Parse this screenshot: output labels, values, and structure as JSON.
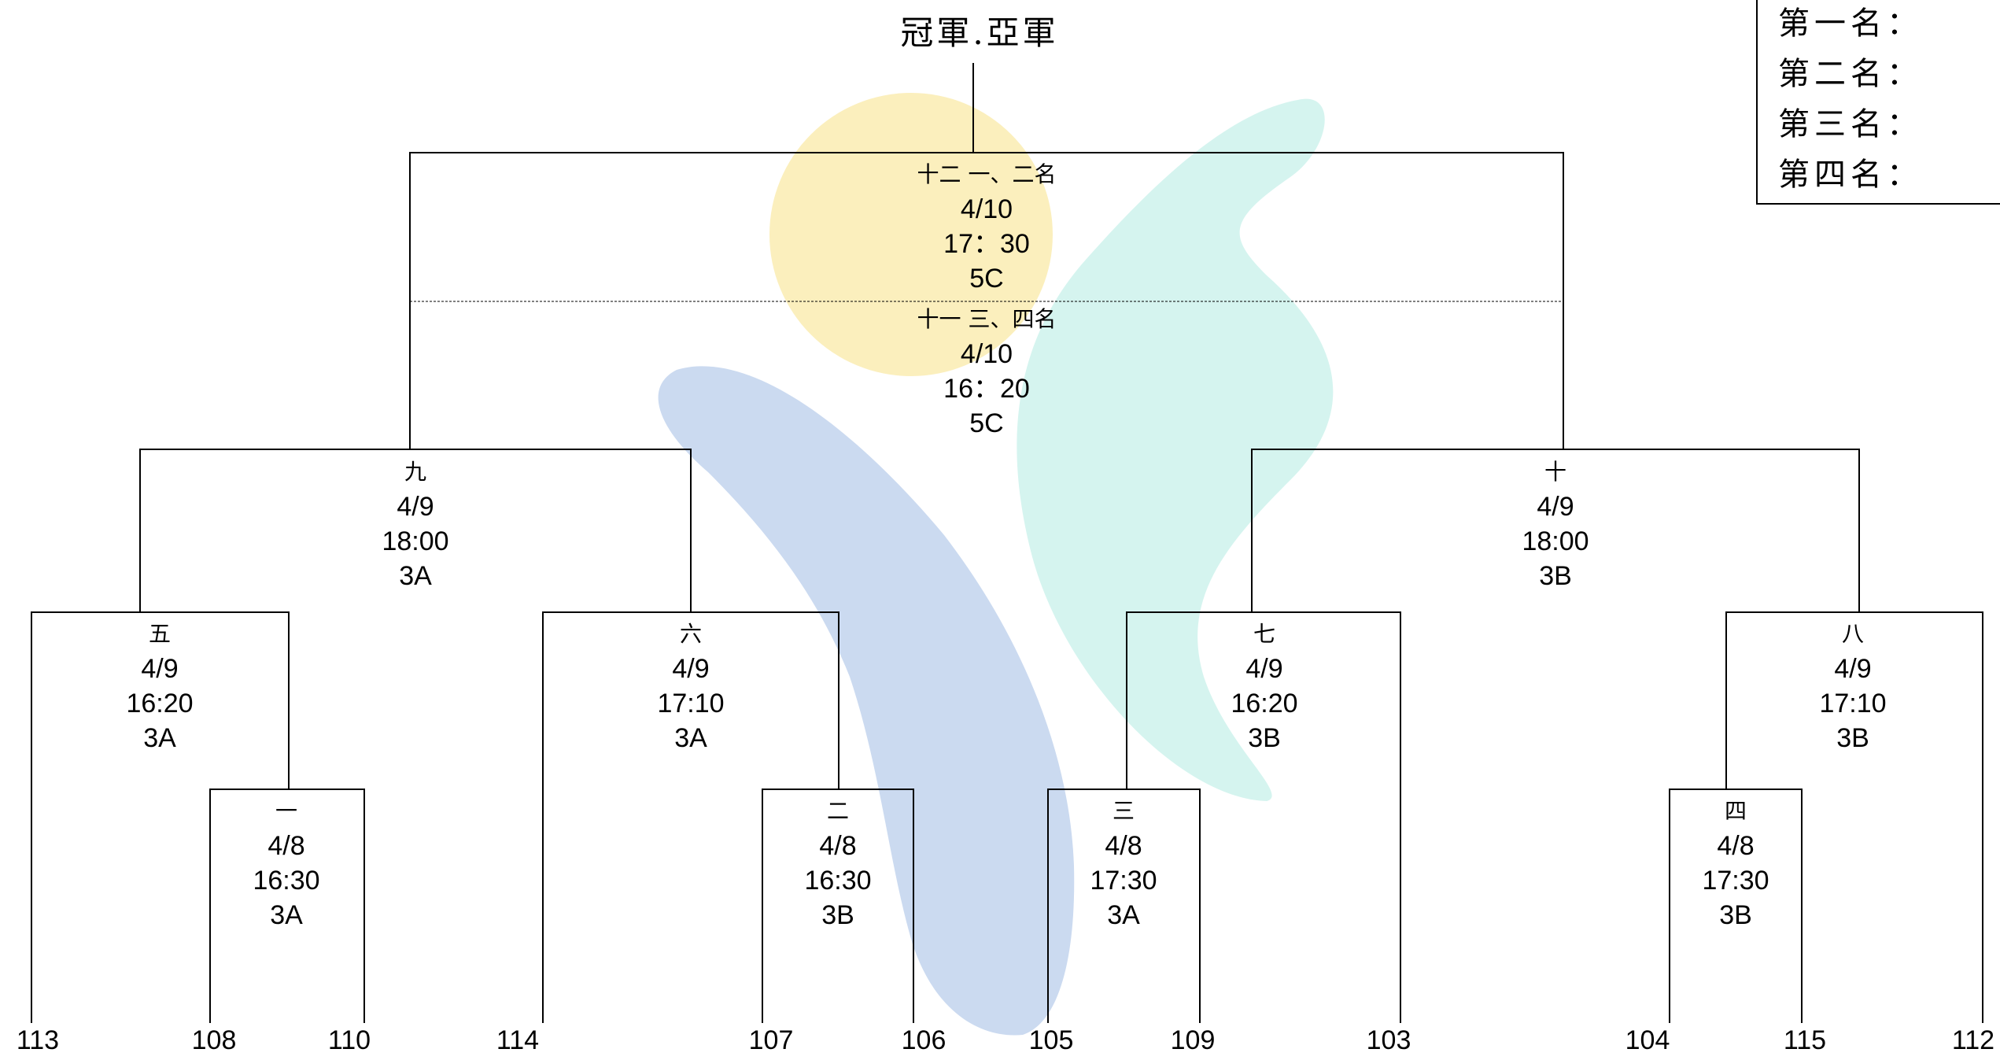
{
  "title": "冠軍.亞軍",
  "standings": [
    "第一名：",
    "第二名：",
    "第三名：",
    "第四名："
  ],
  "matches": {
    "m12": {
      "label": "十二 一、二名",
      "date": "4/10",
      "time": "17：30",
      "venue": "5C"
    },
    "m11": {
      "label": "十一 三、四名",
      "date": "4/10",
      "time": "16：20",
      "venue": "5C"
    },
    "m9": {
      "label": "九",
      "date": "4/9",
      "time": "18:00",
      "venue": "3A"
    },
    "m10": {
      "label": "十",
      "date": "4/9",
      "time": "18:00",
      "venue": "3B"
    },
    "m5": {
      "label": "五",
      "date": "4/9",
      "time": "16:20",
      "venue": "3A"
    },
    "m6": {
      "label": "六",
      "date": "4/9",
      "time": "17:10",
      "venue": "3A"
    },
    "m7": {
      "label": "七",
      "date": "4/9",
      "time": "16:20",
      "venue": "3B"
    },
    "m8": {
      "label": "八",
      "date": "4/9",
      "time": "17:10",
      "venue": "3B"
    },
    "m1": {
      "label": "一",
      "date": "4/8",
      "time": "16:30",
      "venue": "3A"
    },
    "m2": {
      "label": "二",
      "date": "4/8",
      "time": "16:30",
      "venue": "3B"
    },
    "m3": {
      "label": "三",
      "date": "4/8",
      "time": "17:30",
      "venue": "3A"
    },
    "m4": {
      "label": "四",
      "date": "4/8",
      "time": "17:30",
      "venue": "3B"
    }
  },
  "teams": [
    "113",
    "108",
    "110",
    "114",
    "107",
    "106",
    "105",
    "109",
    "103",
    "104",
    "115",
    "112"
  ],
  "colors": {
    "sun": "#fbefbd",
    "blue_leaf": "#cbdaf0",
    "teal_leaf": "#d5f4ef",
    "line": "#000000"
  }
}
